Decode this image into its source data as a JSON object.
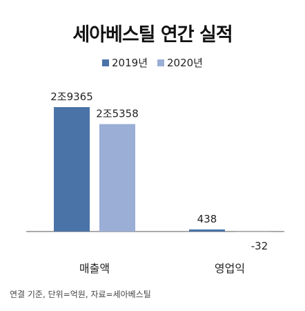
{
  "chart_data": {
    "type": "bar",
    "title": "세아베스틸 연간 실적",
    "categories": [
      "매출액",
      "영업익"
    ],
    "series": [
      {
        "name": "2019년",
        "color": "#4a73a8",
        "values": [
          29365,
          438
        ],
        "labels": [
          "2조9365",
          "438"
        ]
      },
      {
        "name": "2020년",
        "color": "#9aaed6",
        "values": [
          25358,
          -32
        ],
        "labels": [
          "2조5358",
          "-32"
        ]
      }
    ],
    "xlabel": "",
    "ylabel": "",
    "legend": "top-center",
    "grid": false
  },
  "footnote": "연결 기준, 단위=억원, 자료=세아베스틸"
}
